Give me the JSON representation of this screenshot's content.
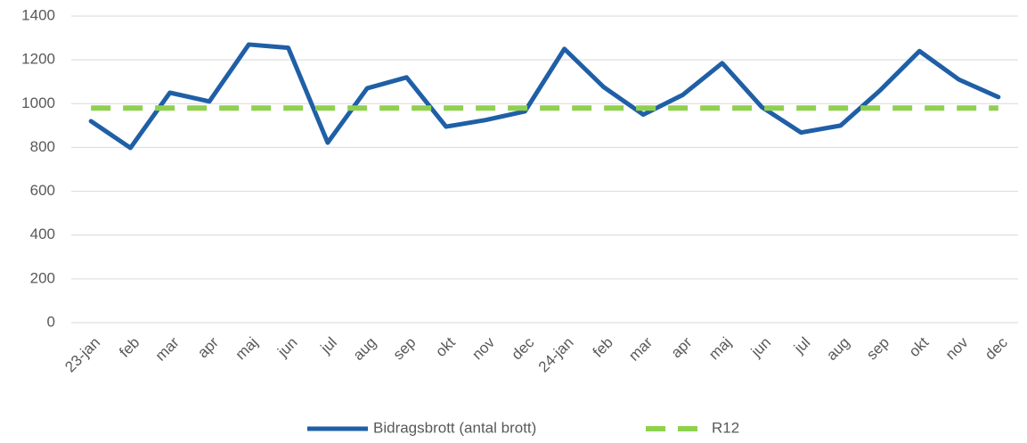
{
  "chart_data": {
    "type": "line",
    "categories": [
      "23-jan",
      "feb",
      "mar",
      "apr",
      "maj",
      "jun",
      "jul",
      "aug",
      "sep",
      "okt",
      "nov",
      "dec",
      "24-jan",
      "feb",
      "mar",
      "apr",
      "maj",
      "jun",
      "jul",
      "aug",
      "sep",
      "okt",
      "nov",
      "dec"
    ],
    "series": [
      {
        "name": "Bidragsbrott (antal brott)",
        "color": "#1f5fa6",
        "dashed": false,
        "values": [
          920,
          798,
          1050,
          1010,
          1270,
          1255,
          822,
          1070,
          1120,
          895,
          925,
          965,
          1250,
          1075,
          950,
          1040,
          1185,
          985,
          868,
          900,
          1060,
          1240,
          1110,
          1030
        ]
      },
      {
        "name": "R12",
        "color": "#8fd14f",
        "dashed": true,
        "values": [
          980,
          980,
          980,
          980,
          980,
          980,
          980,
          980,
          980,
          980,
          980,
          980,
          980,
          980,
          980,
          980,
          980,
          980,
          980,
          980,
          980,
          980,
          980,
          980
        ]
      }
    ],
    "ylim": [
      0,
      1400
    ],
    "yticks": [
      0,
      200,
      400,
      600,
      800,
      1000,
      1200,
      1400
    ],
    "grid": true,
    "legend": "bottom"
  }
}
